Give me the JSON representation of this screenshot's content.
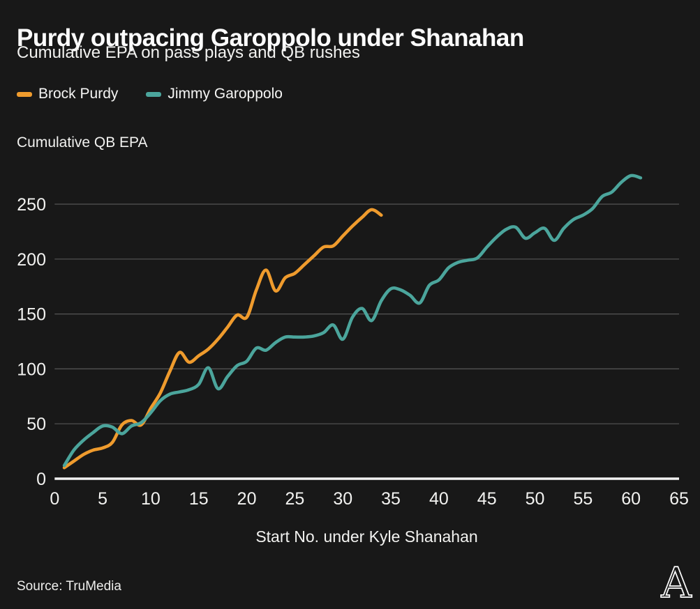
{
  "header": {
    "title": "Purdy outpacing Garoppolo under Shanahan",
    "subtitle": "Cumulative EPA on pass plays and QB rushes"
  },
  "legend": [
    {
      "label": "Brock Purdy",
      "color": "#EF9B2D"
    },
    {
      "label": "Jimmy Garoppolo",
      "color": "#4BA59C"
    }
  ],
  "footer": {
    "source": "Source: TruMedia",
    "logo_letter": "A"
  },
  "colors": {
    "background": "#181818",
    "gridline": "#565656",
    "axis_line": "#F2F2F2",
    "text": "#F2F2F0",
    "purdy": "#EF9B2D",
    "garoppolo": "#4BA59C"
  },
  "chart_data": {
    "type": "line",
    "title": "Purdy outpacing Garoppolo under Shanahan",
    "subtitle": "Cumulative EPA on pass plays and QB rushes",
    "xlabel": "Start No. under Kyle Shanahan",
    "ylabel": "Cumulative QB EPA",
    "xlim": [
      0,
      65
    ],
    "ylim": [
      0,
      250
    ],
    "x_ticks": [
      0,
      5,
      10,
      15,
      20,
      25,
      30,
      35,
      40,
      45,
      50,
      55,
      60,
      65
    ],
    "y_ticks": [
      0,
      50,
      100,
      150,
      200,
      250
    ],
    "grid": "horizontal",
    "legend_position": "top-left",
    "x_start": 1,
    "series": [
      {
        "name": "Brock Purdy",
        "color": "#EF9B2D",
        "values": [
          10,
          16,
          22,
          26,
          28,
          33,
          49,
          53,
          49,
          64,
          78,
          98,
          115,
          106,
          112,
          118,
          127,
          138,
          149,
          147,
          172,
          190,
          171,
          183,
          187,
          195,
          203,
          211,
          212,
          221,
          230,
          238,
          245,
          240
        ]
      },
      {
        "name": "Jimmy Garoppolo",
        "color": "#4BA59C",
        "values": [
          12,
          26,
          35,
          42,
          48,
          47,
          41,
          48,
          51,
          60,
          71,
          77,
          79,
          81,
          86,
          101,
          82,
          93,
          103,
          107,
          119,
          117,
          124,
          129,
          129,
          129,
          130,
          133,
          140,
          127,
          147,
          155,
          144,
          162,
          173,
          172,
          167,
          160,
          176,
          181,
          192,
          197,
          199,
          201,
          211,
          220,
          227,
          229,
          219,
          224,
          228,
          217,
          228,
          236,
          240,
          246,
          257,
          261,
          270,
          276,
          274
        ]
      }
    ]
  }
}
